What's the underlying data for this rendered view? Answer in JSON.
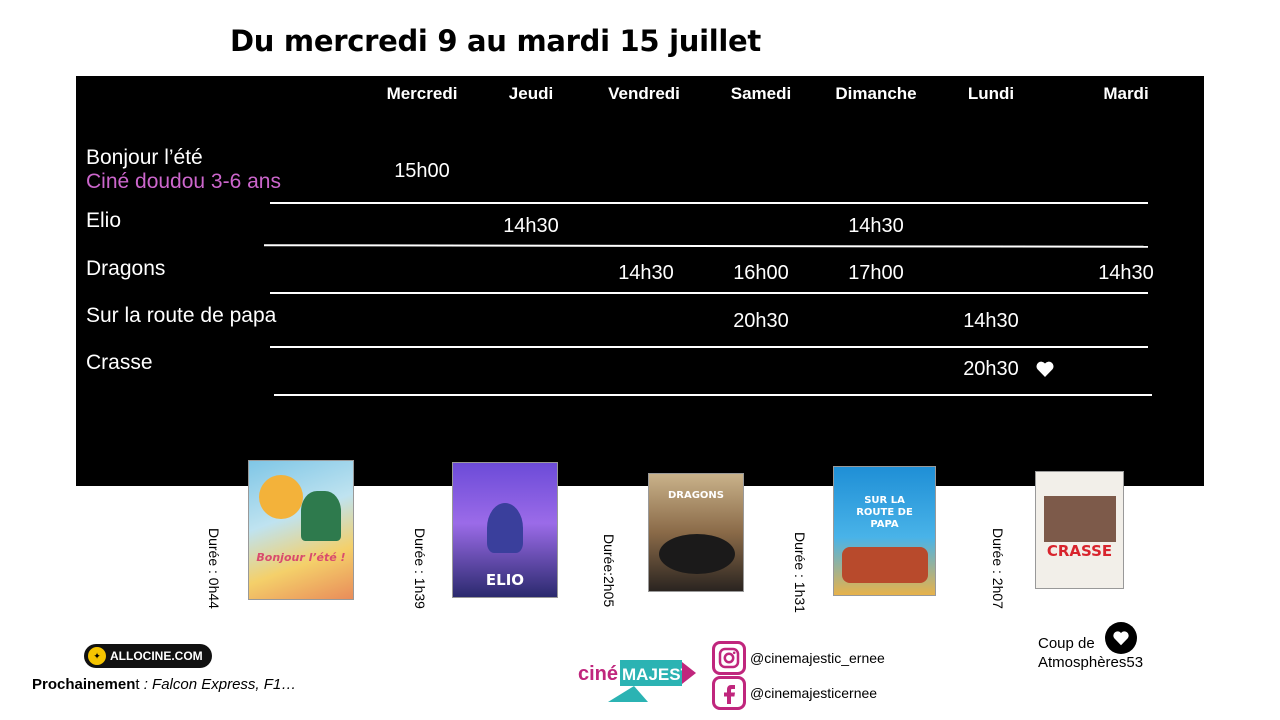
{
  "title": "Du mercredi 9 au mardi 15 juillet",
  "days": [
    "Mercredi",
    "Jeudi",
    "Vendredi",
    "Samedi",
    "Dimanche",
    "Lundi",
    "Mardi"
  ],
  "films": [
    {
      "title": "Bonjour l’été",
      "subtitle": "Ciné doudou 3-6 ans",
      "times": {
        "mercredi": "15h00"
      }
    },
    {
      "title": "Elio",
      "times": {
        "jeudi": "14h30",
        "dimanche": "14h30"
      }
    },
    {
      "title": "Dragons",
      "times": {
        "vendredi": "14h30",
        "samedi": "16h00",
        "dimanche": "17h00",
        "mardi": "14h30"
      }
    },
    {
      "title": "Sur la route de papa",
      "times": {
        "samedi": "20h30",
        "lundi": "14h30"
      }
    },
    {
      "title": "Crasse",
      "times": {
        "lundi": "20h30"
      },
      "coup_de_coeur": true
    }
  ],
  "posters": [
    {
      "film": "Bonjour l’été",
      "poster_text": "Bonjour l’été !",
      "duree": "Durée : 0h44"
    },
    {
      "film": "Elio",
      "poster_text": "ELIO",
      "duree": "Durée : 1h39"
    },
    {
      "film": "Dragons",
      "poster_text": "DRAGONS",
      "duree": "Durée:2h05"
    },
    {
      "film": "Sur la route de papa",
      "poster_text": "SUR LA ROUTE DE PAPA",
      "duree": "Durée :  1h31"
    },
    {
      "film": "Crasse",
      "poster_text": "CRASSE",
      "duree": "Durée : 2h07"
    }
  ],
  "footer": {
    "allocine": "ALLOCINE.COM",
    "prochainement_label": "Prochainemen",
    "prochainement_t": "t",
    "prochainement_list": " : Falcon Express, F1…",
    "cinema_logo": "cinéMAJESTIC",
    "instagram": "@cinemajestic_ernee",
    "facebook": "@cinemajesticernee",
    "coup_line1": "Coup de",
    "coup_line2": "Atmosphères53"
  },
  "colors": {
    "schedule_bg": "#000000",
    "subtitle": "#cc66cc",
    "brand_pink": "#c0267d",
    "brand_teal": "#2bb3b3"
  },
  "icons": [
    "heart-icon",
    "instagram-icon",
    "facebook-icon"
  ]
}
